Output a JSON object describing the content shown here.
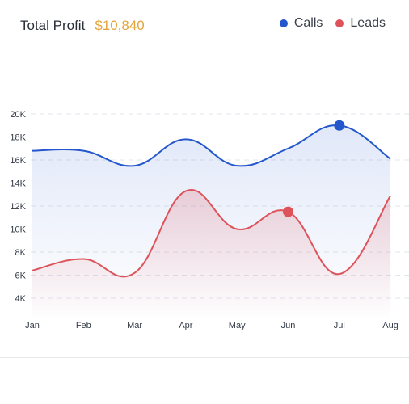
{
  "header": {
    "title": "Total Profit",
    "value": "$10,840"
  },
  "legend": [
    {
      "label": "Calls",
      "color": "#2457cc"
    },
    {
      "label": "Leads",
      "color": "#de525a"
    }
  ],
  "chart_data": {
    "type": "area",
    "categories": [
      "Jan",
      "Feb",
      "Mar",
      "Apr",
      "May",
      "Jun",
      "Jul",
      "Aug"
    ],
    "y_ticks": [
      "4K",
      "6K",
      "8K",
      "10K",
      "12K",
      "14K",
      "16K",
      "18K",
      "20K"
    ],
    "ylim": [
      4000,
      20000
    ],
    "grid": true,
    "legend_position": "top-right",
    "series": [
      {
        "name": "Calls",
        "color": "#2457cc",
        "values": [
          16800,
          16800,
          15500,
          17800,
          15500,
          17000,
          19000,
          16100
        ],
        "marker_index": 6
      },
      {
        "name": "Leads",
        "color": "#de525a",
        "values": [
          6400,
          7400,
          6200,
          13300,
          10000,
          11500,
          6100,
          12900
        ],
        "marker_index": 5
      }
    ]
  }
}
